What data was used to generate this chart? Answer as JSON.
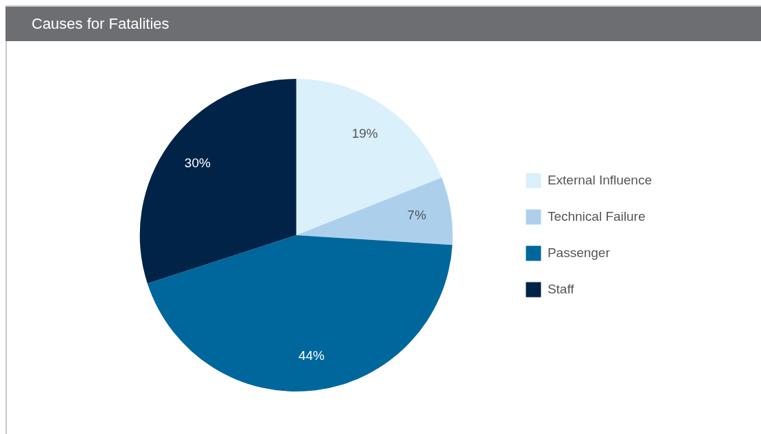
{
  "chart_data": {
    "type": "pie",
    "title": "Causes for Fatalities",
    "categories": [
      "External Influence",
      "Technical Failure",
      "Passenger",
      "Staff"
    ],
    "values": [
      19,
      7,
      44,
      30
    ],
    "colors": [
      "#daf0fb",
      "#acd0ec",
      "#00679d",
      "#002347"
    ],
    "value_labels": [
      "19%",
      "7%",
      "44%",
      "30%"
    ],
    "legend": "right"
  }
}
